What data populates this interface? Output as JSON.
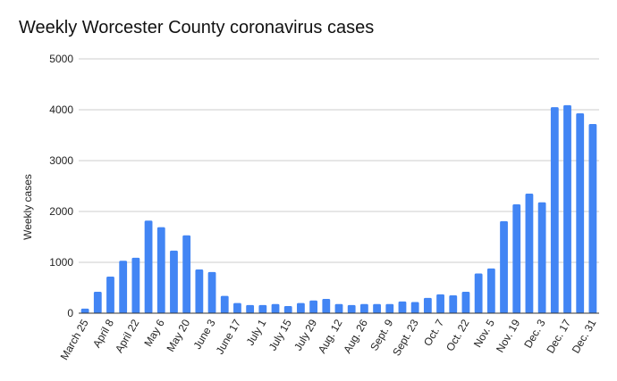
{
  "colors": {
    "bar": "#4285f4",
    "grid": "#cccccc",
    "axis": "#333333",
    "text": "#222222"
  },
  "chart_data": {
    "type": "bar",
    "title": "Weekly Worcester County coronavirus cases",
    "xlabel": "",
    "ylabel": "Weekly cases",
    "ylim": [
      0,
      5000
    ],
    "yticks": [
      0,
      1000,
      2000,
      3000,
      4000,
      5000
    ],
    "grid": true,
    "legend": "none",
    "xtick_labels": [
      "March 25",
      "April 8",
      "April 22",
      "May 6",
      "May 20",
      "June 3",
      "June 17",
      "July 1",
      "July 15",
      "July 29",
      "Aug. 12",
      "Aug. 26",
      "Sept. 9",
      "Sept. 23",
      "Oct. 7",
      "Oct. 22",
      "Nov. 5",
      "Nov. 19",
      "Dec. 3",
      "Dec. 17",
      "Dec. 31"
    ],
    "values": [
      90,
      420,
      720,
      1030,
      1090,
      1820,
      1690,
      1230,
      1530,
      860,
      810,
      340,
      200,
      160,
      160,
      180,
      140,
      200,
      250,
      280,
      180,
      160,
      180,
      180,
      180,
      230,
      220,
      300,
      370,
      350,
      420,
      780,
      880,
      1810,
      2140,
      2350,
      2180,
      4050,
      4090,
      3930,
      3720
    ]
  }
}
